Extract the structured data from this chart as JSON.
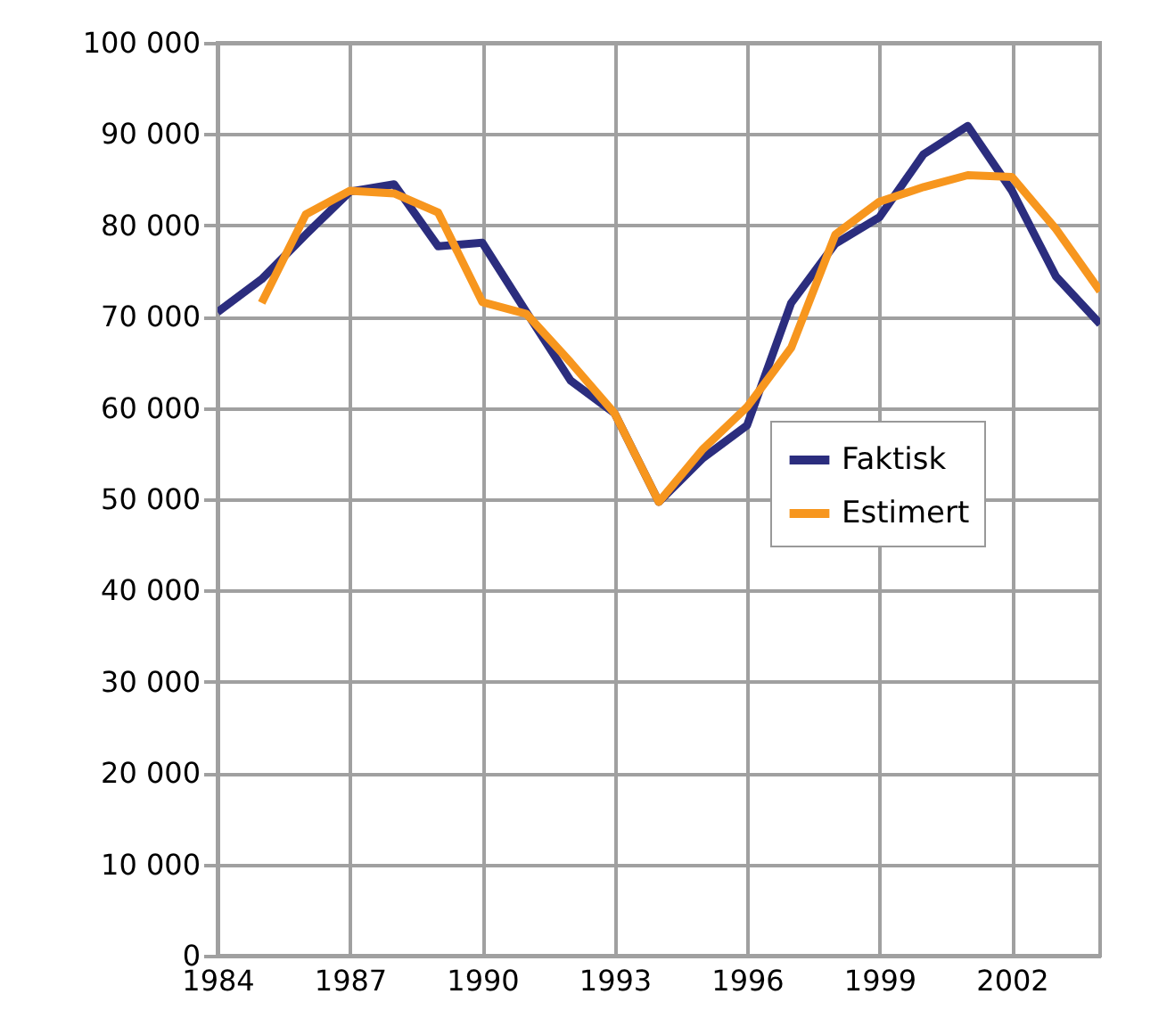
{
  "chart_data": {
    "type": "line",
    "x": [
      1984,
      1985,
      1986,
      1987,
      1988,
      1989,
      1990,
      1991,
      1992,
      1993,
      1994,
      1995,
      1996,
      1997,
      1998,
      1999,
      2000,
      2001,
      2002,
      2003,
      2004
    ],
    "series": [
      {
        "name": "Faktisk",
        "color": "#2b2d7e",
        "values": [
          70500,
          74100,
          79000,
          83700,
          84500,
          77700,
          78100,
          70500,
          63000,
          59400,
          49700,
          54500,
          58100,
          71500,
          78000,
          80900,
          87800,
          90900,
          83800,
          74400,
          69200
        ]
      },
      {
        "name": "Estimert",
        "color": "#f7961e",
        "values": [
          null,
          71500,
          81200,
          83800,
          83500,
          81400,
          71600,
          70300,
          65000,
          59400,
          49700,
          55500,
          60100,
          66600,
          79000,
          82600,
          84200,
          85500,
          85300,
          79600,
          72800
        ]
      }
    ],
    "xlim": [
      1984,
      2004
    ],
    "xticks": [
      1984,
      1987,
      1990,
      1993,
      1996,
      1999,
      2002
    ],
    "ylim": [
      0,
      100000
    ],
    "yticks": [
      0,
      {
        "value": 10000,
        "label": "10 000"
      },
      {
        "value": 20000,
        "label": "20 000"
      },
      {
        "value": 30000,
        "label": "30 000"
      },
      {
        "value": 40000,
        "label": "40 000"
      },
      {
        "value": 50000,
        "label": "50 000"
      },
      {
        "value": 60000,
        "label": "60 000"
      },
      {
        "value": 70000,
        "label": "70 000"
      },
      {
        "value": 80000,
        "label": "80 000"
      },
      {
        "value": 90000,
        "label": "90 000"
      },
      {
        "value": 100000,
        "label": "100 000"
      }
    ],
    "grid": true,
    "legend": "right",
    "marker": "none",
    "line_style": "solid"
  }
}
